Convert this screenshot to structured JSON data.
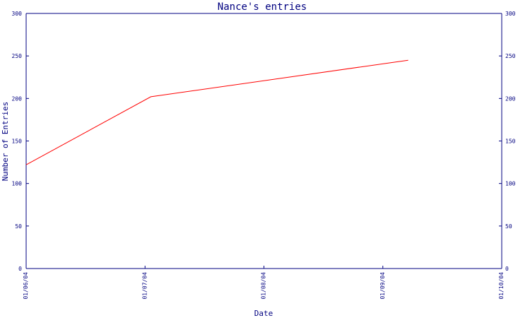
{
  "chart_data": {
    "type": "line",
    "title": "Nance's entries",
    "xlabel": "Date",
    "ylabel": "Number of Entries",
    "x_tick_labels": [
      "01/06/04",
      "01/07/04",
      "01/08/04",
      "01/09/04",
      "01/10/04"
    ],
    "x_range": [
      "2004-06-01",
      "2004-10-01"
    ],
    "ylim": [
      0,
      300
    ],
    "y_ticks": [
      0,
      50,
      100,
      150,
      200,
      250,
      300
    ],
    "grid": false,
    "colors": {
      "axis": "#000080",
      "series": "#ff0000"
    },
    "series": [
      {
        "x": [
          "2004-06-01",
          "2004-07-03",
          "2004-09-07"
        ],
        "y": [
          122,
          202,
          245
        ]
      }
    ]
  }
}
